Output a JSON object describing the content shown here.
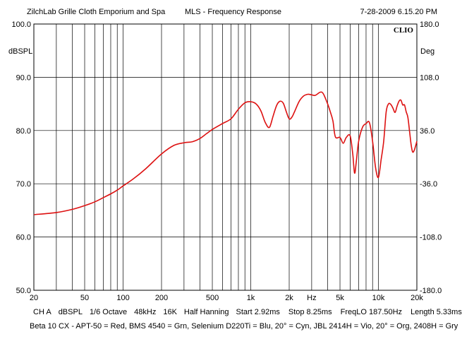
{
  "header": {
    "left": "ZilchLab Grille Cloth Emporium and Spa",
    "center": "MLS - Frequency Response",
    "right": "7-28-2009 6.15.20 PM"
  },
  "chart_data": {
    "type": "line",
    "badge": "CLIO",
    "x_scale": "log",
    "xlim": [
      20,
      20000
    ],
    "ylim": [
      50,
      100
    ],
    "y2lim": [
      -180,
      180
    ],
    "ylabel": "dBSPL",
    "y2label": "Deg",
    "grid": true,
    "y_ticks": [
      "100.0",
      "90.0",
      "80.0",
      "70.0",
      "60.0",
      "50.0"
    ],
    "y2_ticks": [
      "180.0",
      "108.0",
      "36.0",
      "-36.0",
      "-108.0",
      "-180.0"
    ],
    "x_tick_labels": [
      {
        "f": 20,
        "label": "20"
      },
      {
        "f": 50,
        "label": "50"
      },
      {
        "f": 100,
        "label": "100"
      },
      {
        "f": 200,
        "label": "200"
      },
      {
        "f": 500,
        "label": "500"
      },
      {
        "f": 1000,
        "label": "1k"
      },
      {
        "f": 2000,
        "label": "2k"
      },
      {
        "f": 3000,
        "label": "Hz"
      },
      {
        "f": 5000,
        "label": "5k"
      },
      {
        "f": 10000,
        "label": "10k"
      },
      {
        "f": 20000,
        "label": "20k"
      }
    ],
    "series": [
      {
        "color": "#dd1111",
        "x": [
          20,
          30,
          40,
          50,
          60,
          70,
          80,
          90,
          100,
          120,
          150,
          200,
          250,
          300,
          350,
          400,
          450,
          500,
          600,
          700,
          800,
          900,
          1000,
          1100,
          1200,
          1300,
          1400,
          1500,
          1600,
          1700,
          1800,
          1900,
          2000,
          2100,
          2200,
          2400,
          2600,
          2800,
          3000,
          3200,
          3500,
          3700,
          4000,
          4200,
          4400,
          4600,
          5000,
          5300,
          5600,
          6000,
          6300,
          6500,
          6700,
          7000,
          7500,
          8000,
          8500,
          9000,
          9500,
          10000,
          10500,
          11000,
          11500,
          12000,
          12500,
          13000,
          13500,
          14000,
          14500,
          15000,
          15500,
          16000,
          16500,
          17000,
          17500,
          18000,
          18500,
          19000,
          19500,
          20000
        ],
        "y": [
          64.2,
          64.6,
          65.2,
          65.9,
          66.6,
          67.4,
          68.1,
          68.8,
          69.6,
          70.9,
          72.8,
          75.6,
          77.2,
          77.7,
          77.9,
          78.5,
          79.4,
          80.2,
          81.3,
          82.2,
          84.0,
          85.2,
          85.4,
          85.0,
          83.7,
          81.5,
          80.6,
          82.8,
          84.8,
          85.5,
          85.1,
          83.5,
          82.2,
          82.5,
          83.5,
          85.5,
          86.5,
          86.8,
          86.7,
          86.6,
          87.2,
          86.9,
          85.0,
          83.5,
          81.8,
          78.8,
          78.7,
          77.6,
          78.7,
          79.0,
          75.5,
          72.0,
          74.0,
          78.0,
          80.6,
          81.3,
          81.5,
          78.0,
          73.0,
          71.2,
          74.5,
          78.0,
          83.5,
          85.0,
          84.9,
          84.2,
          83.4,
          84.6,
          85.5,
          85.7,
          84.8,
          84.8,
          83.5,
          82.5,
          80.0,
          77.5,
          76.0,
          76.2,
          77.0,
          78.0
        ]
      }
    ]
  },
  "footer": {
    "line1": [
      "CH A",
      "dBSPL",
      "1/6 Octave",
      "48kHz",
      "16K",
      "Half Hanning",
      "Start 2.92ms",
      "Stop 8.25ms",
      "FreqLO 187.50Hz",
      "Length 5.33ms"
    ],
    "line2": "Beta 10 CX - APT-50 = Red, BMS 4540 = Grn, Selenium D220Ti = Blu, 20° = Cyn, JBL 2414H = Vio, 20° = Org, 2408H = Gry"
  }
}
